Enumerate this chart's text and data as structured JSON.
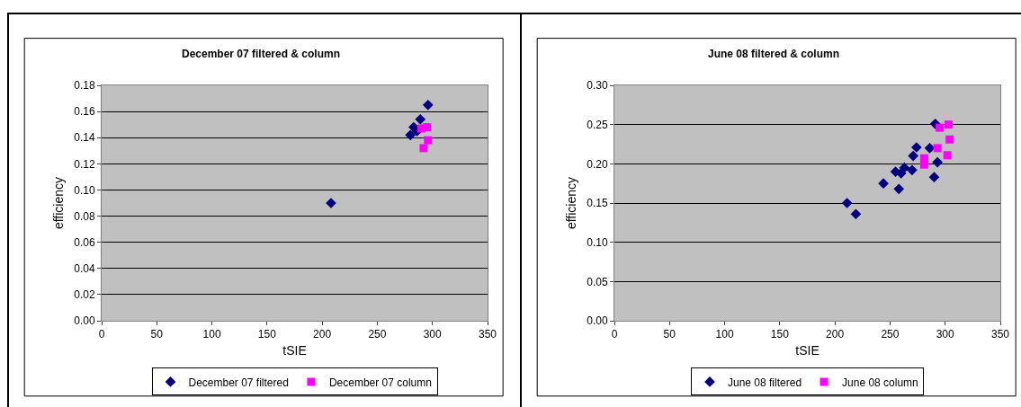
{
  "chart_data": [
    {
      "type": "scatter",
      "title": "December 07 filtered & column",
      "xlabel": "tSIE",
      "ylabel": "efficiency",
      "xlim": [
        0,
        350
      ],
      "xticks": [
        0,
        50,
        100,
        150,
        200,
        250,
        300,
        350
      ],
      "ylim": [
        0,
        0.18
      ],
      "yticks": [
        {
          "value": 0,
          "label": "0.00"
        },
        {
          "value": 0.02,
          "label": "0.02"
        },
        {
          "value": 0.04,
          "label": "0.04"
        },
        {
          "value": 0.06,
          "label": "0.06"
        },
        {
          "value": 0.08,
          "label": "0.08"
        },
        {
          "value": 0.1,
          "label": "0.10"
        },
        {
          "value": 0.12,
          "label": "0.12"
        },
        {
          "value": 0.14,
          "label": "0.14"
        },
        {
          "value": 0.16,
          "label": "0.16"
        },
        {
          "value": 0.18,
          "label": "0.18"
        }
      ],
      "grid": "y",
      "legend": "bottom",
      "series": [
        {
          "name": "December 07 filtered",
          "color": "#000080",
          "marker": "diamond",
          "x": [
            208,
            296,
            289,
            283,
            280,
            286
          ],
          "values": [
            0.09,
            0.165,
            0.154,
            0.148,
            0.142,
            0.145
          ]
        },
        {
          "name": "December 07 column",
          "color": "#ff00ff",
          "marker": "square",
          "x": [
            290,
            295,
            296,
            292
          ],
          "values": [
            0.147,
            0.148,
            0.138,
            0.132
          ]
        }
      ]
    },
    {
      "type": "scatter",
      "title": "June 08 filtered & column",
      "xlabel": "tSIE",
      "ylabel": "efficiency",
      "xlim": [
        0,
        350
      ],
      "xticks": [
        0,
        50,
        100,
        150,
        200,
        250,
        300,
        350
      ],
      "ylim": [
        0,
        0.3
      ],
      "yticks": [
        {
          "value": 0,
          "label": "0.00"
        },
        {
          "value": 0.05,
          "label": "0.05"
        },
        {
          "value": 0.1,
          "label": "0.10"
        },
        {
          "value": 0.15,
          "label": "0.15"
        },
        {
          "value": 0.2,
          "label": "0.20"
        },
        {
          "value": 0.25,
          "label": "0.25"
        },
        {
          "value": 0.3,
          "label": "0.30"
        }
      ],
      "grid": "y",
      "legend": "bottom",
      "series": [
        {
          "name": "June 08 filtered",
          "color": "#000080",
          "marker": "diamond",
          "x": [
            211,
            219,
            244,
            258,
            255,
            260,
            263,
            270,
            274,
            271,
            290,
            293,
            291,
            286
          ],
          "values": [
            0.15,
            0.136,
            0.175,
            0.168,
            0.19,
            0.188,
            0.195,
            0.192,
            0.221,
            0.21,
            0.183,
            0.202,
            0.251,
            0.22
          ]
        },
        {
          "name": "June 08 column",
          "color": "#ff00ff",
          "marker": "square",
          "x": [
            281,
            281,
            295,
            303,
            304,
            293,
            302
          ],
          "values": [
            0.199,
            0.207,
            0.246,
            0.25,
            0.231,
            0.22,
            0.211
          ]
        }
      ]
    }
  ]
}
